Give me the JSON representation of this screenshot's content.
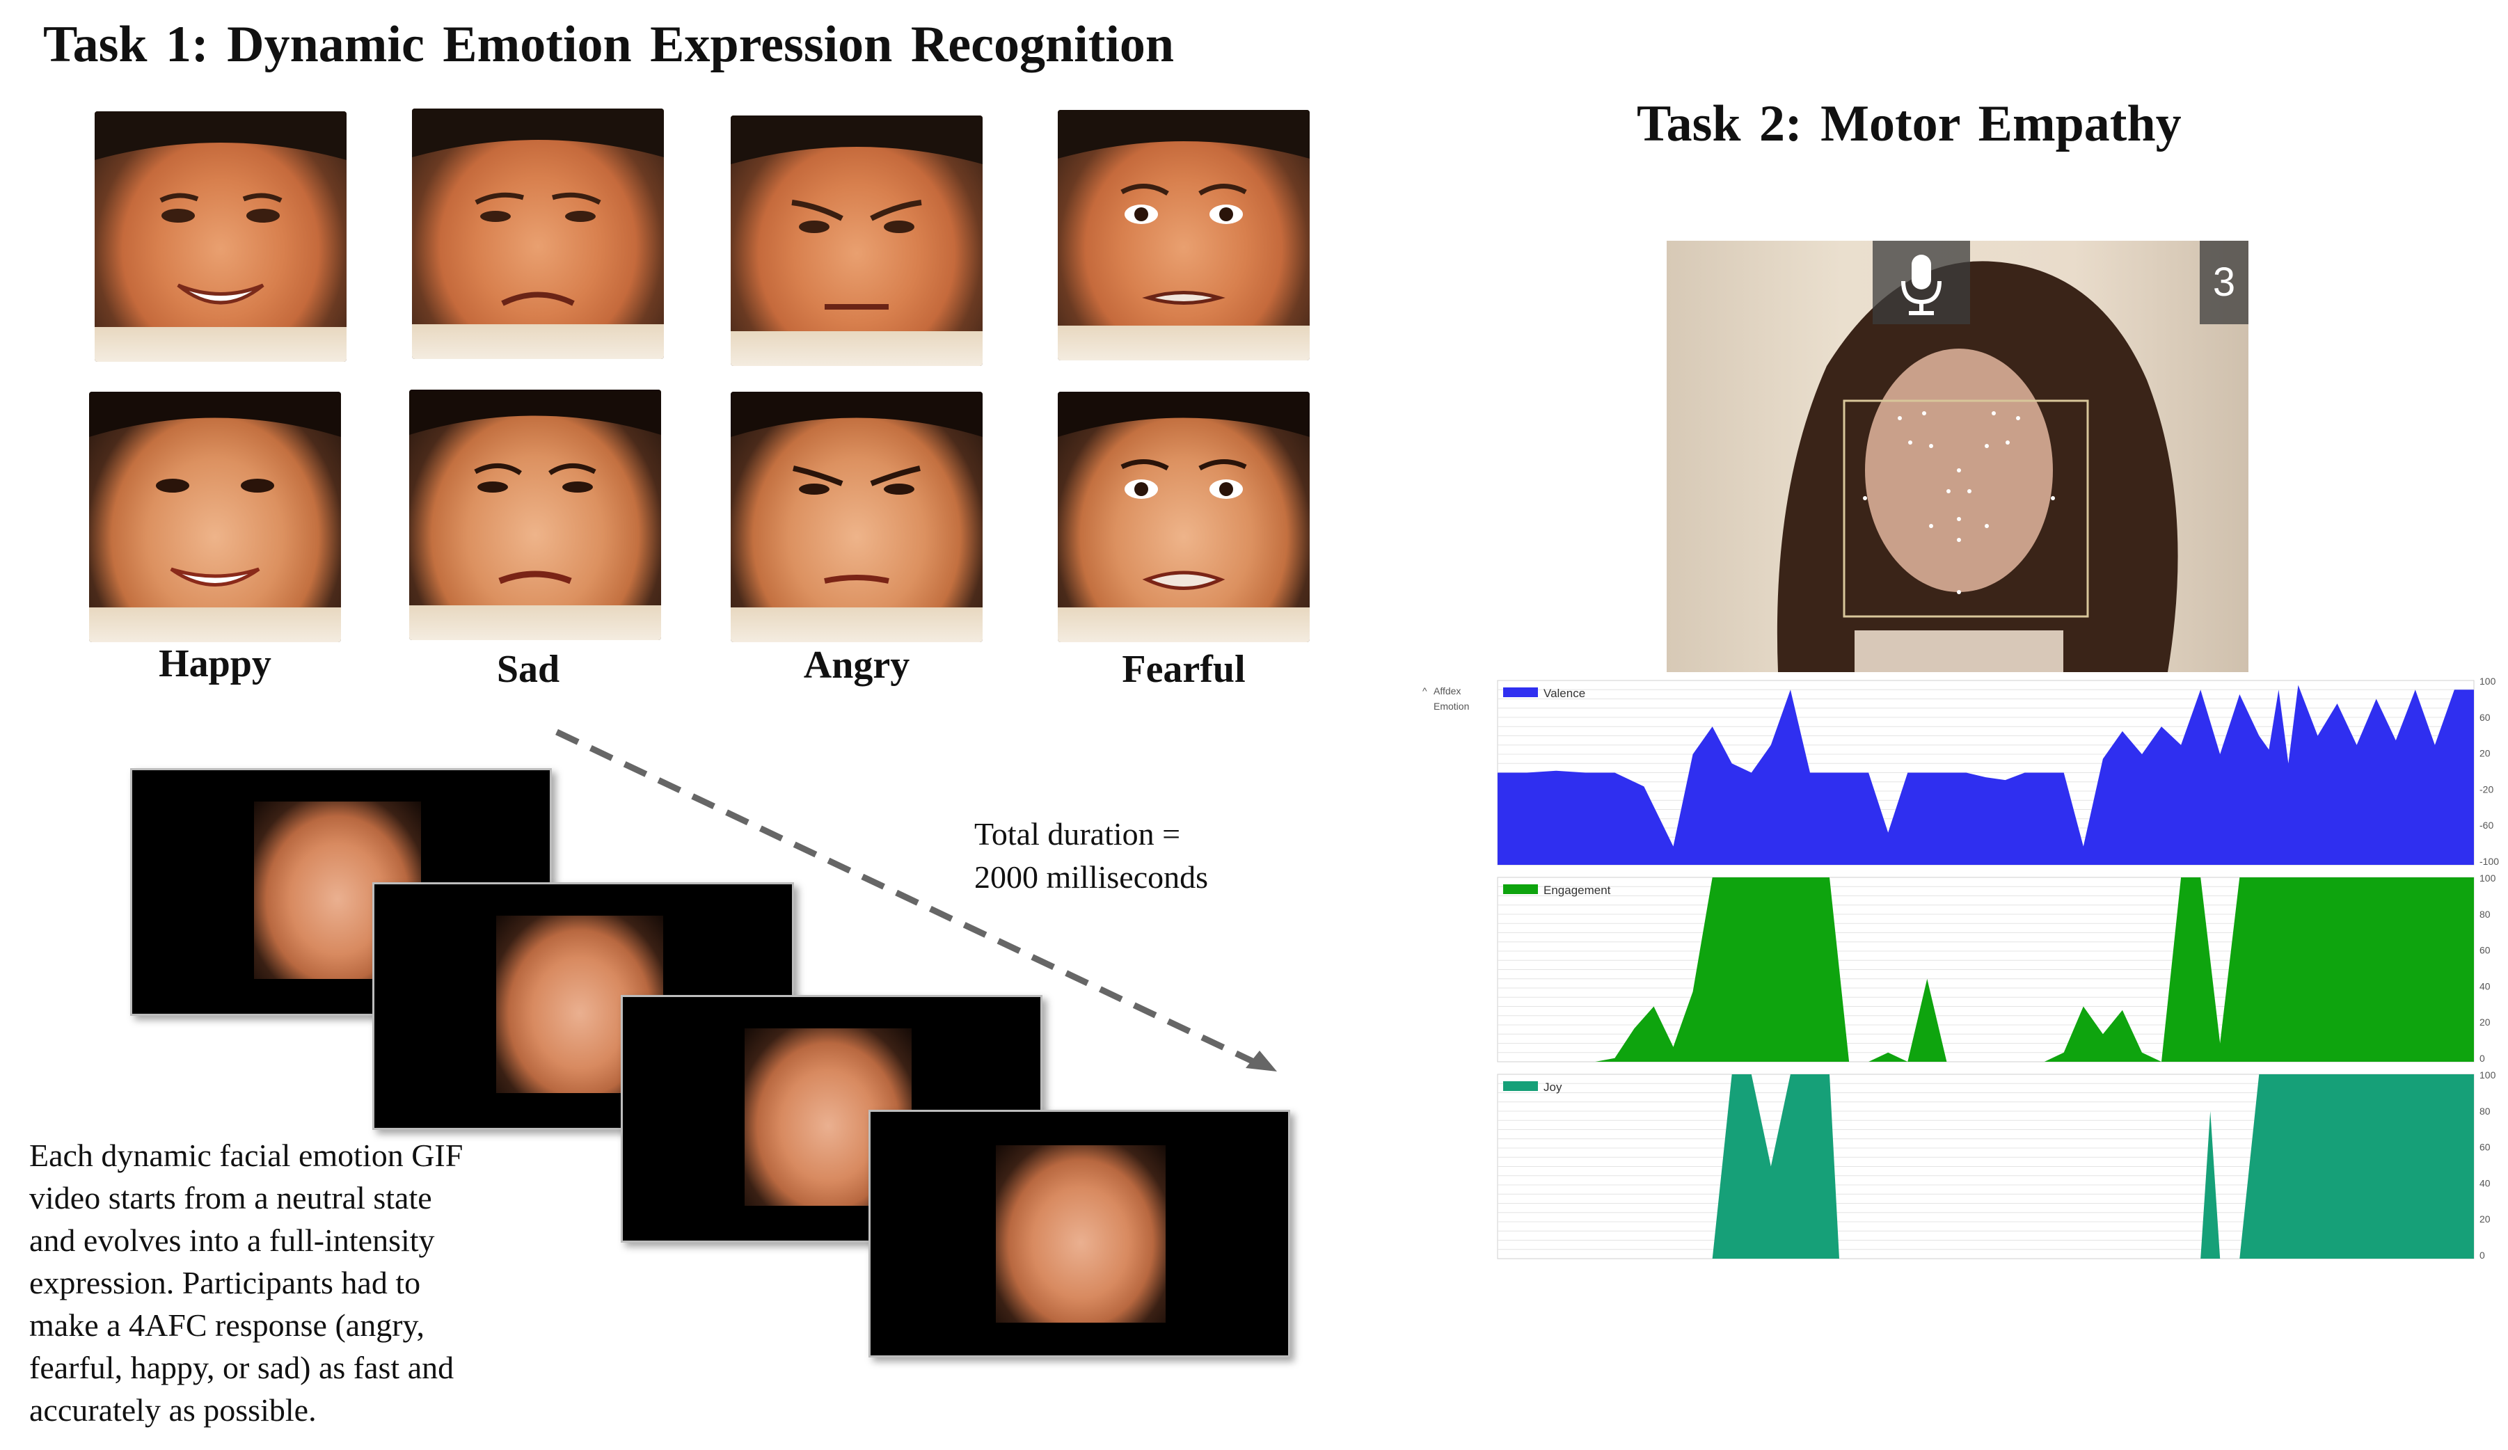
{
  "task1": {
    "title": "Task 1: Dynamic Emotion Expression Recognition",
    "labels": [
      "Happy",
      "Sad",
      "Angry",
      "Fearful"
    ],
    "duration_line1": "Total duration =",
    "duration_line2": "2000 milliseconds",
    "description_lines": [
      "Each dynamic facial emotion GIF",
      "video starts from a neutral state",
      "and evolves into a full-intensity",
      "expression. Participants had to",
      "make a 4AFC response (angry,",
      "fearful, happy, or sad) as fast and",
      "accurately as possible."
    ]
  },
  "task2": {
    "title": "Task 2: Motor Empathy",
    "webcam_counter": "3",
    "side_label_line1": "Affdex",
    "side_label_line2": "Emotion"
  },
  "chart_data": [
    {
      "type": "area",
      "title": "",
      "series": [
        {
          "name": "Valence",
          "color": "#2f2ff0"
        }
      ],
      "ylim": [
        -100,
        100
      ],
      "yticks": [
        "100",
        "60",
        "20",
        "-20",
        "-60",
        "-100"
      ],
      "x": [
        0,
        3,
        6,
        9,
        12,
        15,
        18,
        20,
        22,
        24,
        26,
        28,
        30,
        32,
        34,
        36,
        38,
        40,
        42,
        44,
        46,
        48,
        50,
        52,
        54,
        56,
        58,
        60,
        62,
        64,
        66,
        68,
        70,
        72,
        74,
        76,
        78,
        79,
        80,
        81,
        82,
        84,
        86,
        88,
        90,
        92,
        94,
        96,
        98,
        100
      ],
      "values": [
        0,
        0,
        2,
        0,
        0,
        -15,
        -80,
        20,
        50,
        10,
        0,
        30,
        90,
        0,
        0,
        0,
        0,
        -65,
        0,
        0,
        0,
        0,
        -5,
        -8,
        0,
        0,
        0,
        -80,
        15,
        45,
        20,
        50,
        30,
        90,
        20,
        85,
        40,
        25,
        90,
        10,
        95,
        40,
        75,
        30,
        80,
        35,
        90,
        30,
        90,
        90
      ]
    },
    {
      "type": "area",
      "title": "",
      "series": [
        {
          "name": "Engagement",
          "color": "#0ea40e"
        }
      ],
      "ylim": [
        0,
        100
      ],
      "yticks": [
        "100",
        "80",
        "60",
        "40",
        "20",
        "0"
      ],
      "x": [
        0,
        3,
        6,
        8,
        10,
        12,
        14,
        16,
        18,
        20,
        22,
        24,
        26,
        28,
        30,
        32,
        34,
        36,
        38,
        40,
        42,
        44,
        46,
        48,
        50,
        52,
        54,
        56,
        58,
        60,
        62,
        64,
        66,
        68,
        70,
        72,
        74,
        76,
        78,
        80,
        82,
        84,
        86,
        88,
        90,
        92,
        94,
        96,
        98,
        100
      ],
      "values": [
        0,
        0,
        0,
        0,
        0,
        2,
        18,
        30,
        8,
        38,
        100,
        100,
        100,
        100,
        100,
        100,
        100,
        0,
        0,
        5,
        0,
        45,
        0,
        0,
        0,
        0,
        0,
        0,
        5,
        30,
        15,
        28,
        5,
        0,
        100,
        100,
        10,
        100,
        100,
        100,
        100,
        100,
        100,
        100,
        100,
        100,
        100,
        100,
        100,
        100
      ]
    },
    {
      "type": "area",
      "title": "",
      "series": [
        {
          "name": "Joy",
          "color": "#16a078"
        }
      ],
      "ylim": [
        0,
        100
      ],
      "yticks": [
        "100",
        "80",
        "60",
        "40",
        "20",
        "0"
      ],
      "x": [
        0,
        5,
        10,
        15,
        20,
        22,
        24,
        26,
        28,
        30,
        32,
        34,
        35,
        36,
        38,
        40,
        45,
        50,
        55,
        60,
        65,
        70,
        72,
        73,
        74,
        75,
        76,
        78,
        80,
        82,
        84,
        86,
        88,
        90,
        92,
        94,
        96,
        98,
        100
      ],
      "values": [
        0,
        0,
        0,
        0,
        0,
        0,
        100,
        100,
        50,
        100,
        100,
        100,
        0,
        0,
        0,
        0,
        0,
        0,
        0,
        0,
        0,
        0,
        0,
        80,
        0,
        0,
        0,
        100,
        100,
        100,
        100,
        100,
        100,
        100,
        100,
        100,
        100,
        100,
        100
      ]
    }
  ]
}
